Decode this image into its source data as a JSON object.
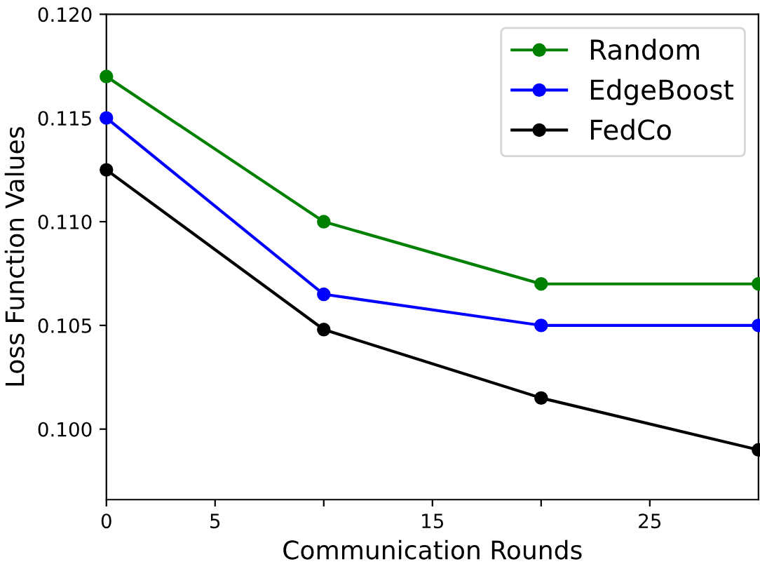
{
  "chart_data": {
    "type": "line",
    "xlabel": "Communication Rounds",
    "ylabel": "Loss Function Values",
    "x": [
      0,
      10,
      20,
      30
    ],
    "series": [
      {
        "name": "Random",
        "color": "#008000",
        "values": [
          0.117,
          0.11,
          0.107,
          0.107
        ]
      },
      {
        "name": "EdgeBoost",
        "color": "#0000ff",
        "values": [
          0.115,
          0.1065,
          0.105,
          0.105
        ]
      },
      {
        "name": "FedCo",
        "color": "#000000",
        "values": [
          0.1125,
          0.1048,
          0.1015,
          0.099
        ]
      }
    ],
    "xlim": [
      0,
      30
    ],
    "xticks": [
      0,
      5,
      {
        "value": 10,
        "label": null
      },
      15,
      {
        "value": 20,
        "label": null
      },
      25
    ],
    "ylim": [
      0.0966,
      0.12
    ],
    "yticks": [
      {
        "value": 0.1,
        "label": "0.100"
      },
      {
        "value": 0.105,
        "label": "0.105"
      },
      {
        "value": 0.11,
        "label": "0.110"
      },
      {
        "value": 0.115,
        "label": "0.115"
      },
      {
        "value": 0.12,
        "label": "0.120"
      }
    ],
    "marker": "circle",
    "line_style": "solid",
    "grid": false,
    "legend": "top right"
  }
}
